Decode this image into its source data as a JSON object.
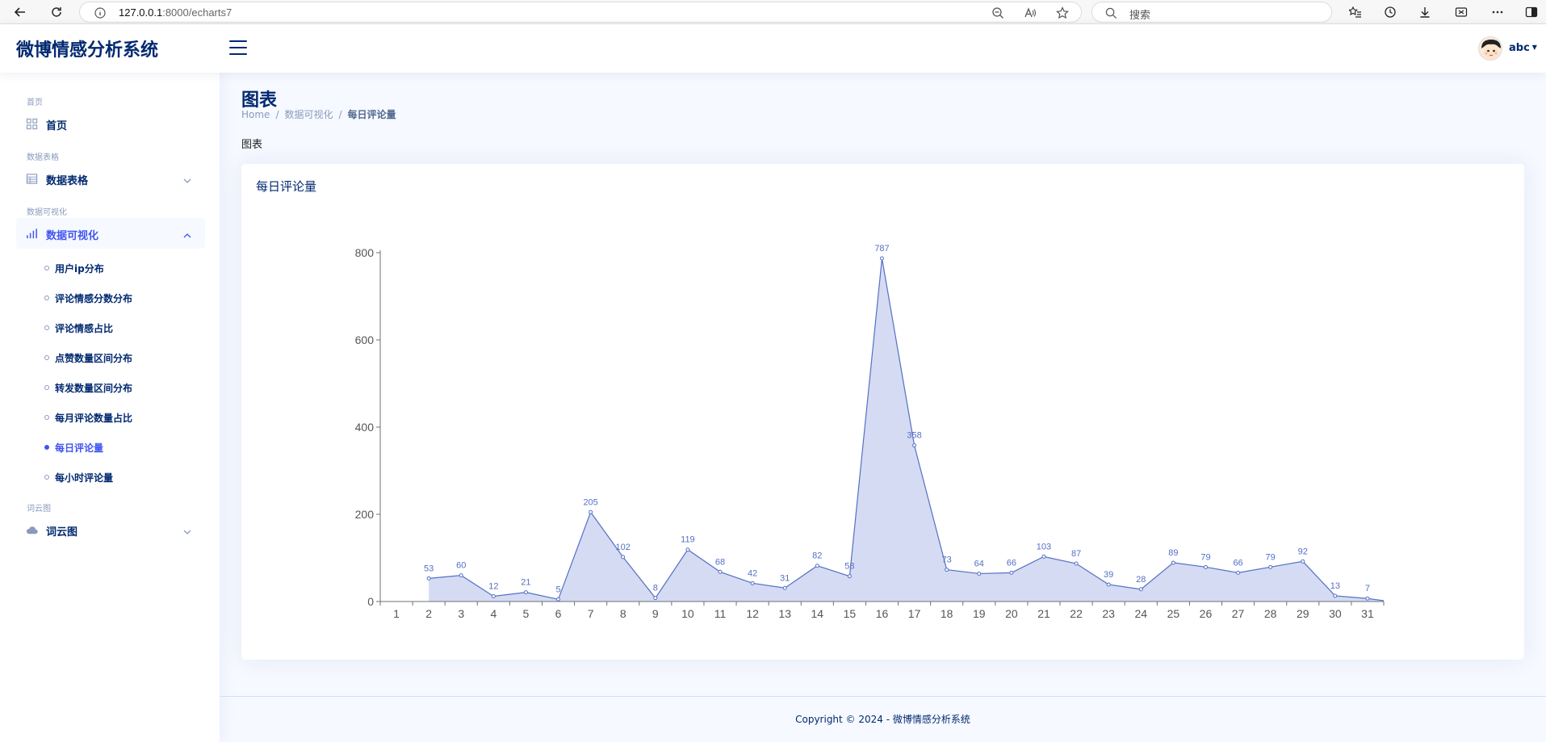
{
  "browser": {
    "url_host": "127.0.0.1",
    "url_rest": ":8000/echarts7",
    "search_placeholder": "搜索"
  },
  "header": {
    "logo": "微博情感分析系统",
    "user_name": "abc"
  },
  "sidebar": {
    "groups": [
      {
        "heading": "首页",
        "item": {
          "label": "首页",
          "icon": "grid-icon"
        }
      },
      {
        "heading": "数据表格",
        "item": {
          "label": "数据表格",
          "icon": "table-icon"
        }
      },
      {
        "heading": "数据可视化",
        "item": {
          "label": "数据可视化",
          "icon": "bar-chart-icon"
        },
        "subitems": [
          "用户ip分布",
          "评论情感分数分布",
          "评论情感占比",
          "点赞数量区间分布",
          "转发数量区间分布",
          "每月评论数量占比",
          "每日评论量",
          "每小时评论量"
        ]
      },
      {
        "heading": "词云图",
        "item": {
          "label": "词云图",
          "icon": "cloud-icon"
        }
      }
    ],
    "active_subitem": "每日评论量"
  },
  "main": {
    "title": "图表",
    "breadcrumb": [
      "Home",
      "数据可视化",
      "每日评论量"
    ],
    "section_label": "图表",
    "card_title": "每日评论量"
  },
  "footer": {
    "prefix": "Copyright © 2024 - ",
    "brand": "微博情感分析系统"
  },
  "colors": {
    "accent": "#4154f1",
    "navy": "#012970",
    "series_line": "#5470c6",
    "series_fill": "#d3d9f1"
  },
  "chart_data": {
    "type": "area",
    "title": "每日评论量",
    "x": [
      "1",
      "2",
      "3",
      "4",
      "5",
      "6",
      "7",
      "8",
      "9",
      "10",
      "11",
      "12",
      "13",
      "14",
      "15",
      "16",
      "17",
      "18",
      "19",
      "20",
      "21",
      "22",
      "23",
      "24",
      "25",
      "26",
      "27",
      "28",
      "29",
      "30",
      "31"
    ],
    "series": [
      {
        "values": [
          null,
          53,
          60,
          12,
          21,
          5,
          205,
          102,
          8,
          119,
          68,
          42,
          31,
          82,
          58,
          787,
          358,
          73,
          64,
          66,
          103,
          87,
          39,
          28,
          89,
          79,
          66,
          79,
          92,
          13,
          7
        ]
      }
    ],
    "trailing_value": 2,
    "ylim": [
      0,
      800
    ],
    "yticks": [
      0,
      200,
      400,
      600,
      800
    ],
    "grid": false,
    "legend": "none"
  }
}
